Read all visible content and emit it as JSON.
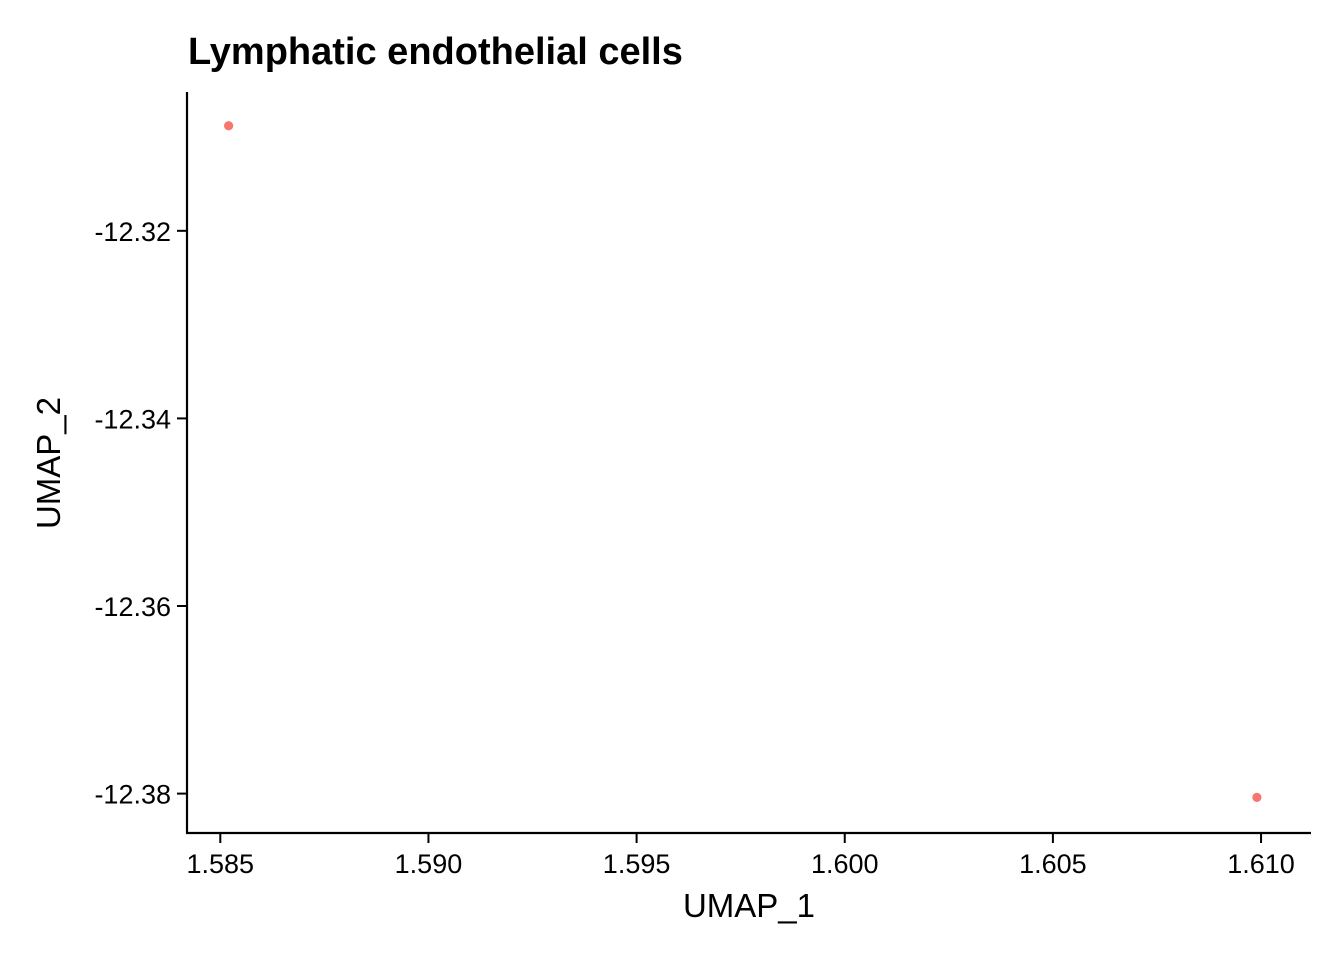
{
  "chart_data": {
    "type": "scatter",
    "title": "Lymphatic endothelial cells",
    "xlabel": "UMAP_1",
    "ylabel": "UMAP_2",
    "xlim": [
      1.5842,
      1.6112
    ],
    "ylim": [
      -12.3842,
      -12.3052
    ],
    "x_ticks": [
      1.585,
      1.59,
      1.595,
      1.6,
      1.605,
      1.61
    ],
    "x_tick_labels": [
      "1.585",
      "1.590",
      "1.595",
      "1.600",
      "1.605",
      "1.610"
    ],
    "y_ticks": [
      -12.32,
      -12.34,
      -12.36,
      -12.38
    ],
    "y_tick_labels": [
      "-12.32",
      "-12.34",
      "-12.36",
      "-12.38"
    ],
    "grid": false,
    "legend": "none",
    "point_color": "#F8766D",
    "points": [
      {
        "x": 1.5852,
        "y": -12.3088
      },
      {
        "x": 1.6099,
        "y": -12.3804
      }
    ]
  }
}
